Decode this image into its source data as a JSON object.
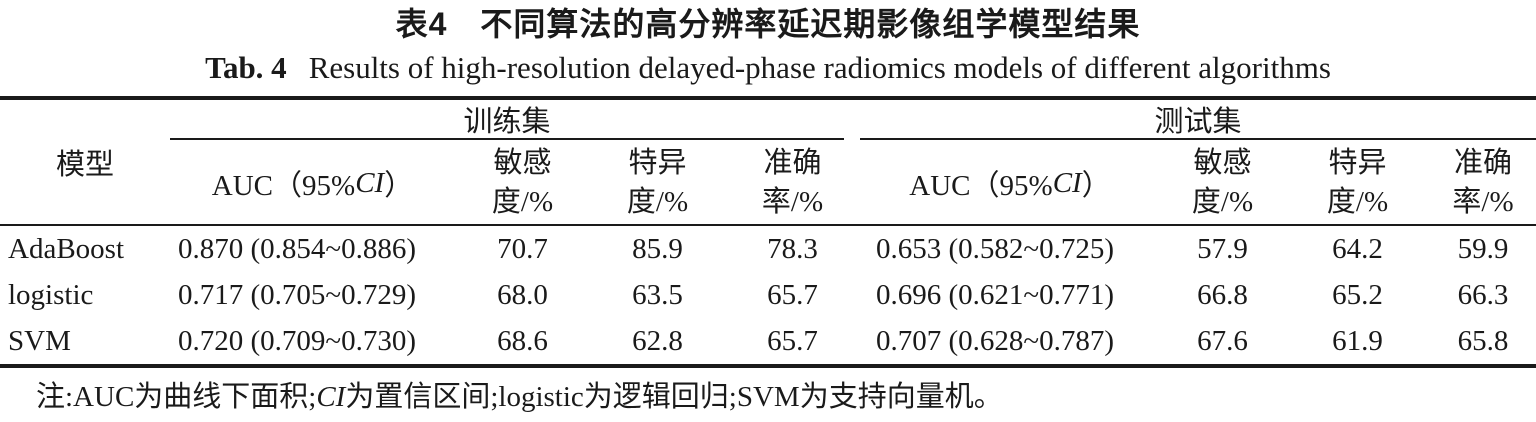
{
  "title": {
    "zh": "表4　不同算法的高分辨率延迟期影像组学模型结果",
    "en_label": "Tab. 4",
    "en_text": "Results of high-resolution delayed-phase radiomics models of different algorithms"
  },
  "table": {
    "col_model": "模型",
    "group_train": "训练集",
    "group_test": "测试集",
    "auc_header": {
      "pre": "AUC（95% ",
      "ci": "CI",
      "post": "）"
    },
    "sens": {
      "l1": "敏感",
      "l2": "度/%"
    },
    "spec": {
      "l1": "特异",
      "l2": "度/%"
    },
    "acc": {
      "l1": "准确",
      "l2": "率/%"
    },
    "rows": [
      {
        "model": "AdaBoost",
        "train_auc": "0.870 (0.854~0.886)",
        "train_sens": "70.7",
        "train_spec": "85.9",
        "train_acc": "78.3",
        "test_auc": "0.653 (0.582~0.725)",
        "test_sens": "57.9",
        "test_spec": "64.2",
        "test_acc": "59.9"
      },
      {
        "model": "logistic",
        "train_auc": "0.717 (0.705~0.729)",
        "train_sens": "68.0",
        "train_spec": "63.5",
        "train_acc": "65.7",
        "test_auc": "0.696 (0.621~0.771)",
        "test_sens": "66.8",
        "test_spec": "65.2",
        "test_acc": "66.3"
      },
      {
        "model": "SVM",
        "train_auc": "0.720 (0.709~0.730)",
        "train_sens": "68.6",
        "train_spec": "62.8",
        "train_acc": "65.7",
        "test_auc": "0.707 (0.628~0.787)",
        "test_sens": "67.6",
        "test_spec": "61.9",
        "test_acc": "65.8"
      }
    ]
  },
  "note": {
    "p1": "注:AUC为曲线下面积;",
    "ci": "CI",
    "p2": "为置信区间;logistic为逻辑回归;SVM为支持向量机。"
  }
}
